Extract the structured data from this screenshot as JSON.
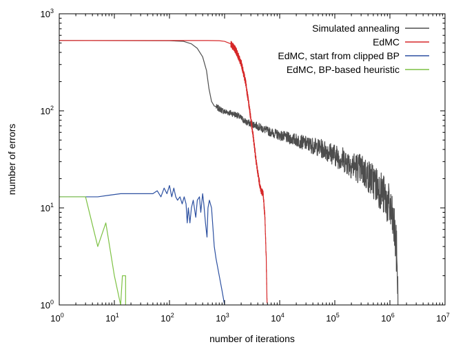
{
  "chart_data": {
    "type": "line",
    "title": "",
    "xlabel": "number of iterations",
    "ylabel": "number of errors",
    "xscale": "log",
    "yscale": "log",
    "xlim": [
      1,
      10000000
    ],
    "ylim": [
      1,
      1000
    ],
    "x_ticks": [
      {
        "base": "10",
        "exp": "0"
      },
      {
        "base": "10",
        "exp": "1"
      },
      {
        "base": "10",
        "exp": "2"
      },
      {
        "base": "10",
        "exp": "3"
      },
      {
        "base": "10",
        "exp": "4"
      },
      {
        "base": "10",
        "exp": "5"
      },
      {
        "base": "10",
        "exp": "6"
      },
      {
        "base": "10",
        "exp": "7"
      }
    ],
    "y_ticks": [
      {
        "base": "10",
        "exp": "0"
      },
      {
        "base": "10",
        "exp": "1"
      },
      {
        "base": "10",
        "exp": "2"
      },
      {
        "base": "10",
        "exp": "3"
      }
    ],
    "grid": false,
    "legend_position": "top-right",
    "series": [
      {
        "name": "Simulated annealing",
        "color": "#4d4d4d",
        "points": [
          [
            1,
            530
          ],
          [
            100,
            528
          ],
          [
            180,
            520
          ],
          [
            250,
            490
          ],
          [
            320,
            440
          ],
          [
            400,
            360
          ],
          [
            470,
            260
          ],
          [
            520,
            170
          ],
          [
            580,
            125
          ],
          [
            650,
            112
          ],
          [
            800,
            105
          ],
          [
            1000,
            98
          ],
          [
            1300,
            95
          ],
          [
            1700,
            90
          ],
          [
            2500,
            76
          ],
          [
            3500,
            72
          ],
          [
            5000,
            65
          ],
          [
            7000,
            60
          ],
          [
            10000,
            56
          ],
          [
            15000,
            52
          ],
          [
            20000,
            50
          ],
          [
            30000,
            46
          ],
          [
            50000,
            42
          ],
          [
            70000,
            39
          ],
          [
            100000,
            35
          ],
          [
            150000,
            31
          ],
          [
            200000,
            28
          ],
          [
            300000,
            25
          ],
          [
            500000,
            19
          ],
          [
            700000,
            15
          ],
          [
            1000000,
            10
          ],
          [
            1200000,
            6
          ],
          [
            1350000,
            3
          ],
          [
            1400000,
            1
          ]
        ],
        "noisy_from": 700
      },
      {
        "name": "EdMC",
        "color": "#d62728",
        "points": [
          [
            1,
            530
          ],
          [
            500,
            530
          ],
          [
            800,
            528
          ],
          [
            1000,
            520
          ],
          [
            1300,
            490
          ],
          [
            1600,
            420
          ],
          [
            2000,
            310
          ],
          [
            2400,
            200
          ],
          [
            2800,
            110
          ],
          [
            3300,
            55
          ],
          [
            3800,
            28
          ],
          [
            4300,
            18
          ],
          [
            4600,
            15
          ],
          [
            5000,
            14
          ],
          [
            5400,
            8
          ],
          [
            5700,
            3
          ],
          [
            5900,
            1
          ]
        ],
        "noisy_from": 1300
      },
      {
        "name": "EdMC, start from clipped BP",
        "color": "#2b4fa0",
        "points": [
          [
            1,
            13
          ],
          [
            3,
            13
          ],
          [
            5,
            13
          ],
          [
            8,
            13.5
          ],
          [
            13,
            14
          ],
          [
            30,
            14
          ],
          [
            50,
            14
          ],
          [
            60,
            15
          ],
          [
            70,
            13
          ],
          [
            80,
            16
          ],
          [
            90,
            14
          ],
          [
            100,
            17
          ],
          [
            110,
            13
          ],
          [
            120,
            16
          ],
          [
            130,
            13
          ],
          [
            140,
            12
          ],
          [
            155,
            13
          ],
          [
            170,
            11
          ],
          [
            185,
            13
          ],
          [
            200,
            11
          ],
          [
            210,
            7
          ],
          [
            220,
            10
          ],
          [
            235,
            7
          ],
          [
            250,
            10
          ],
          [
            270,
            12
          ],
          [
            300,
            8
          ],
          [
            320,
            12
          ],
          [
            350,
            13
          ],
          [
            370,
            9
          ],
          [
            400,
            14
          ],
          [
            420,
            11
          ],
          [
            450,
            7
          ],
          [
            480,
            5
          ],
          [
            500,
            10
          ],
          [
            530,
            12
          ],
          [
            580,
            10
          ],
          [
            650,
            4
          ],
          [
            700,
            3
          ],
          [
            800,
            2
          ],
          [
            900,
            1.4
          ],
          [
            1000,
            1
          ]
        ]
      },
      {
        "name": "EdMC, BP-based heuristic",
        "color": "#7cc142",
        "points": [
          [
            1,
            13
          ],
          [
            3,
            13
          ],
          [
            5,
            4
          ],
          [
            7,
            7
          ],
          [
            10,
            2
          ],
          [
            13,
            1
          ],
          [
            14,
            2
          ],
          [
            16,
            2
          ],
          [
            16,
            1
          ]
        ]
      }
    ]
  }
}
